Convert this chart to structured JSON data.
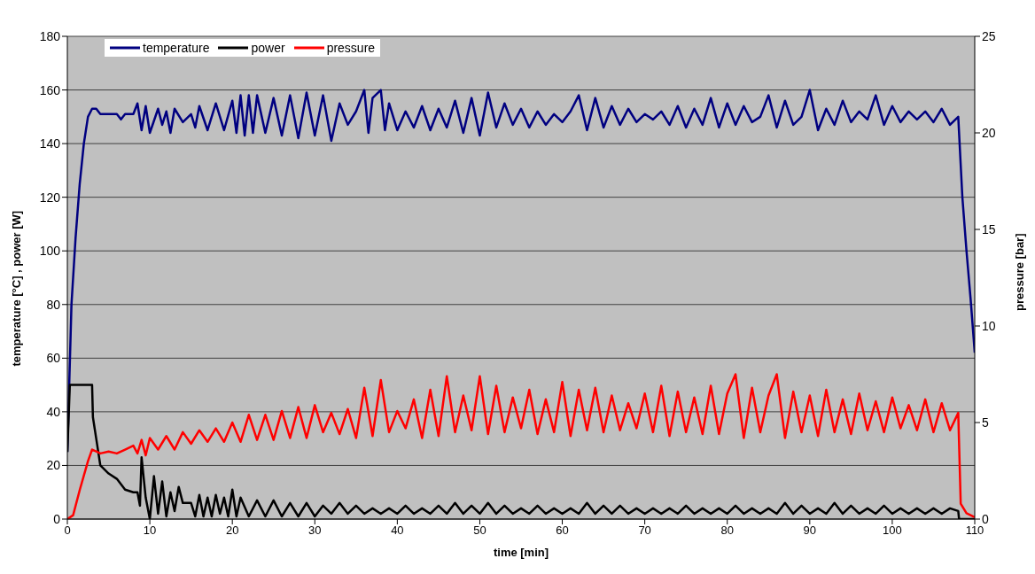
{
  "chart_data": {
    "type": "line",
    "xlabel": "time [min]",
    "ylabel": "temperature [°C] , power [W]",
    "y2label": "pressure [bar]",
    "xlim": [
      0,
      110
    ],
    "xticks": [
      0,
      10,
      20,
      30,
      40,
      50,
      60,
      70,
      80,
      90,
      100,
      110
    ],
    "ylim": [
      0,
      180
    ],
    "yticks": [
      0,
      20,
      40,
      60,
      80,
      100,
      120,
      140,
      160,
      180
    ],
    "y2lim": [
      0,
      25
    ],
    "y2ticks": [
      0,
      5,
      10,
      15,
      20,
      25
    ],
    "grid": "y",
    "legend": "top left",
    "marker": "none",
    "line_style": "solid",
    "series": [
      {
        "name": "temperature",
        "color": "#000080",
        "x": [
          0,
          0.5,
          1,
          1.5,
          2,
          2.5,
          3,
          3.5,
          4,
          5,
          6,
          6.5,
          7,
          8,
          8.5,
          9,
          9.5,
          10,
          11,
          11.5,
          12,
          12.5,
          13,
          14,
          15,
          15.5,
          16,
          17,
          18,
          19,
          20,
          20.5,
          21,
          21.5,
          22,
          22.5,
          23,
          24,
          25,
          26,
          27,
          28,
          29,
          30,
          31,
          32,
          33,
          34,
          35,
          36,
          36.5,
          37,
          38,
          38.5,
          39,
          40,
          41,
          42,
          43,
          44,
          45,
          46,
          47,
          48,
          49,
          50,
          51,
          52,
          53,
          54,
          55,
          56,
          57,
          58,
          59,
          60,
          61,
          62,
          63,
          64,
          65,
          66,
          67,
          68,
          69,
          70,
          71,
          72,
          73,
          74,
          75,
          76,
          77,
          78,
          79,
          80,
          81,
          82,
          83,
          84,
          85,
          86,
          87,
          88,
          89,
          90,
          91,
          92,
          93,
          94,
          95,
          96,
          97,
          98,
          99,
          100,
          101,
          102,
          103,
          104,
          105,
          106,
          107,
          108,
          108.5,
          109,
          109.5,
          110
        ],
        "values": [
          25,
          80,
          105,
          125,
          140,
          150,
          153,
          153,
          151,
          151,
          151,
          149,
          151,
          151,
          155,
          145,
          154,
          144,
          153,
          147,
          152,
          144,
          153,
          148,
          151,
          146,
          154,
          145,
          155,
          145,
          156,
          144,
          158,
          143,
          158,
          144,
          158,
          144,
          157,
          143,
          158,
          142,
          159,
          143,
          158,
          141,
          155,
          147,
          152,
          160,
          144,
          157,
          160,
          145,
          155,
          145,
          152,
          146,
          154,
          145,
          153,
          146,
          156,
          144,
          157,
          143,
          159,
          146,
          155,
          147,
          153,
          146,
          152,
          147,
          151,
          148,
          152,
          158,
          145,
          157,
          146,
          154,
          147,
          153,
          148,
          151,
          149,
          152,
          147,
          154,
          146,
          153,
          147,
          157,
          146,
          155,
          147,
          154,
          148,
          150,
          158,
          146,
          156,
          147,
          150,
          160,
          145,
          153,
          147,
          156,
          148,
          152,
          149,
          158,
          147,
          154,
          148,
          152,
          149,
          152,
          148,
          153,
          147,
          150,
          120,
          100,
          82,
          62
        ]
      },
      {
        "name": "power",
        "color": "#000000",
        "x": [
          0,
          0.3,
          3,
          3.1,
          3.5,
          4,
          5,
          6,
          7,
          8,
          8.5,
          8.8,
          9,
          9.5,
          10,
          10.5,
          11,
          11.5,
          12,
          12.5,
          13,
          13.5,
          14,
          15,
          15.5,
          16,
          16.5,
          17,
          17.5,
          18,
          18.5,
          19,
          19.5,
          20,
          20.5,
          21,
          22,
          23,
          24,
          25,
          26,
          27,
          28,
          29,
          30,
          31,
          32,
          33,
          34,
          35,
          36,
          37,
          38,
          39,
          40,
          41,
          42,
          43,
          44,
          45,
          46,
          47,
          48,
          49,
          50,
          51,
          52,
          53,
          54,
          55,
          56,
          57,
          58,
          59,
          60,
          61,
          62,
          63,
          64,
          65,
          66,
          67,
          68,
          69,
          70,
          71,
          72,
          73,
          74,
          75,
          76,
          77,
          78,
          79,
          80,
          81,
          82,
          83,
          84,
          85,
          86,
          87,
          88,
          89,
          90,
          91,
          92,
          93,
          94,
          95,
          96,
          97,
          98,
          99,
          100,
          101,
          102,
          103,
          104,
          105,
          106,
          107,
          108,
          108.1,
          110
        ],
        "values": [
          25,
          50,
          50,
          38,
          30,
          20,
          17,
          15,
          11,
          10,
          10,
          5,
          23,
          8,
          0,
          16,
          2,
          14,
          1,
          10,
          3,
          12,
          6,
          6,
          1,
          9,
          1,
          8,
          1,
          9,
          2,
          8,
          1,
          11,
          1,
          8,
          1,
          7,
          1,
          7,
          1,
          6,
          1,
          6,
          1,
          5,
          2,
          6,
          2,
          5,
          2,
          4,
          2,
          4,
          2,
          5,
          2,
          4,
          2,
          5,
          2,
          6,
          2,
          5,
          2,
          6,
          2,
          5,
          2,
          4,
          2,
          5,
          2,
          4,
          2,
          4,
          2,
          6,
          2,
          5,
          2,
          5,
          2,
          4,
          2,
          4,
          2,
          4,
          2,
          5,
          2,
          4,
          2,
          4,
          2,
          5,
          2,
          4,
          2,
          4,
          2,
          6,
          2,
          5,
          2,
          4,
          2,
          6,
          2,
          5,
          2,
          4,
          2,
          5,
          2,
          4,
          2,
          4,
          2,
          4,
          2,
          4,
          3,
          0,
          0
        ]
      },
      {
        "name": "pressure",
        "color": "#ff0000",
        "axis": "y2",
        "x": [
          0,
          0.7,
          1.5,
          2.5,
          3,
          3.5,
          4,
          5,
          6,
          7,
          8,
          8.5,
          9,
          9.5,
          10,
          11,
          12,
          13,
          14,
          15,
          16,
          17,
          18,
          19,
          20,
          21,
          22,
          23,
          24,
          25,
          26,
          27,
          28,
          29,
          30,
          31,
          32,
          33,
          34,
          35,
          36,
          37,
          38,
          39,
          40,
          41,
          42,
          43,
          44,
          45,
          46,
          47,
          48,
          49,
          50,
          51,
          52,
          53,
          54,
          55,
          56,
          57,
          58,
          59,
          60,
          61,
          62,
          63,
          64,
          65,
          66,
          67,
          68,
          69,
          70,
          71,
          72,
          73,
          74,
          75,
          76,
          77,
          78,
          79,
          80,
          81,
          82,
          83,
          84,
          85,
          86,
          87,
          88,
          89,
          90,
          91,
          92,
          93,
          94,
          95,
          96,
          97,
          98,
          99,
          100,
          101,
          102,
          103,
          104,
          105,
          106,
          107,
          108,
          108.3,
          109,
          110
        ],
        "values": [
          0,
          0.2,
          1.5,
          3,
          3.6,
          3.5,
          3.4,
          3.5,
          3.4,
          3.6,
          3.8,
          3.4,
          4.1,
          3.3,
          4.2,
          3.6,
          4.3,
          3.6,
          4.5,
          3.9,
          4.6,
          4,
          4.7,
          4,
          5,
          4,
          5.4,
          4.1,
          5.4,
          4.1,
          5.6,
          4.2,
          5.8,
          4.2,
          5.9,
          4.5,
          5.5,
          4.4,
          5.7,
          4.2,
          6.8,
          4.3,
          7.2,
          4.5,
          5.6,
          4.7,
          6.2,
          4.2,
          6.7,
          4.3,
          7.4,
          4.5,
          6.4,
          4.6,
          7.4,
          4.4,
          6.9,
          4.5,
          6.3,
          4.7,
          6.7,
          4.4,
          6.2,
          4.5,
          7.1,
          4.3,
          6.7,
          4.6,
          6.8,
          4.5,
          6.4,
          4.6,
          6,
          4.7,
          6.5,
          4.5,
          6.9,
          4.3,
          6.6,
          4.5,
          6.3,
          4.4,
          6.9,
          4.4,
          6.5,
          7.5,
          4.2,
          6.8,
          4.5,
          6.4,
          7.5,
          4.2,
          6.6,
          4.5,
          6.4,
          4.3,
          6.7,
          4.5,
          6.2,
          4.4,
          6.5,
          4.6,
          6.1,
          4.5,
          6.3,
          4.7,
          5.9,
          4.6,
          6.2,
          4.5,
          6,
          4.6,
          5.5,
          0.8,
          0.3,
          0.1
        ]
      }
    ]
  }
}
